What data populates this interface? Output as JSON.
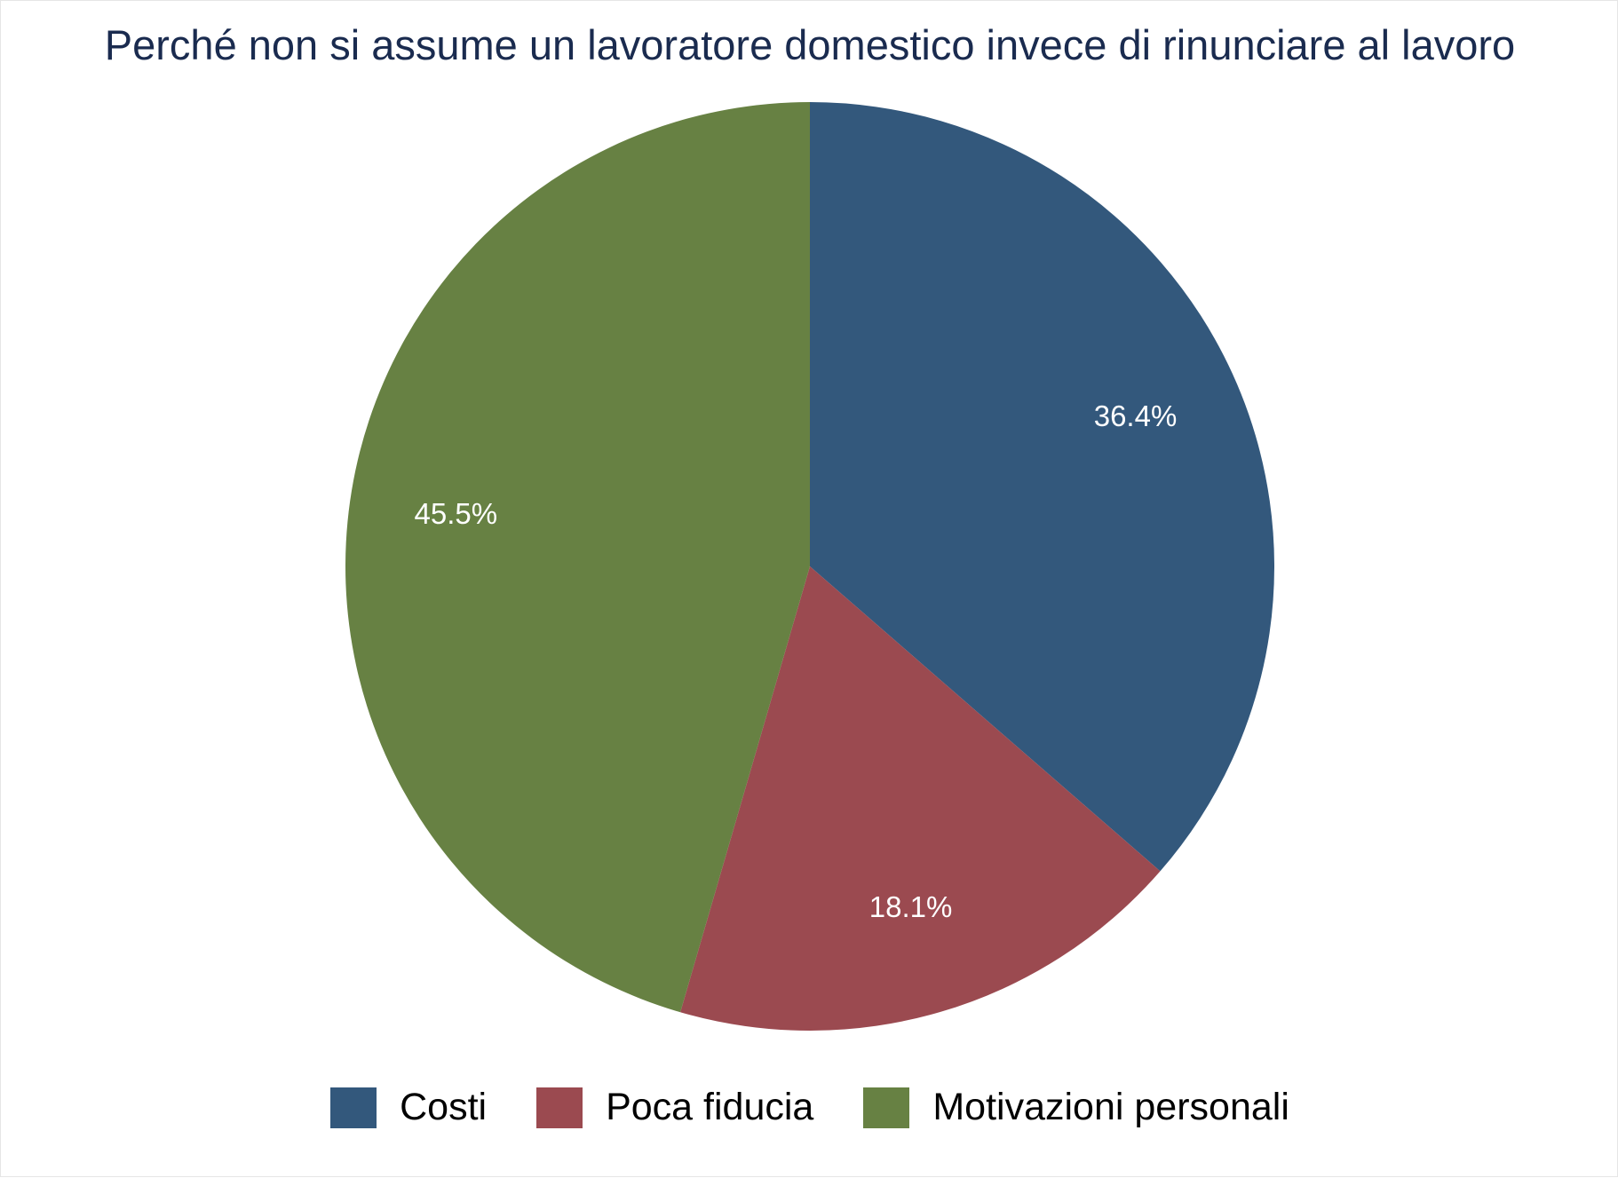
{
  "chart_data": {
    "type": "pie",
    "title": "Perché non si assume un lavoratore domestico invece di rinunciare al lavoro",
    "slices": [
      {
        "label": "Costi",
        "value": 36.4,
        "display": "36.4%",
        "color": "#33587c"
      },
      {
        "label": "Poca fiducia",
        "value": 18.1,
        "display": "18.1%",
        "color": "#9b4a50"
      },
      {
        "label": "Motivazioni personali",
        "value": 45.5,
        "display": "45.5%",
        "color": "#678143"
      }
    ],
    "start_angle": "12 o'clock",
    "direction": "clockwise",
    "legend_position": "bottom"
  }
}
